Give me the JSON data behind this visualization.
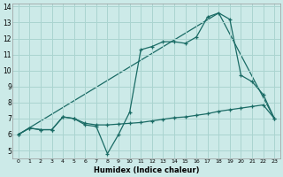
{
  "xlabel": "Humidex (Indice chaleur)",
  "bg_color": "#cceae8",
  "grid_color": "#aad4d0",
  "line_color": "#1a6b65",
  "xlim": [
    -0.5,
    23.5
  ],
  "ylim": [
    4.5,
    14.2
  ],
  "xticks": [
    0,
    1,
    2,
    3,
    4,
    5,
    6,
    7,
    8,
    9,
    10,
    11,
    12,
    13,
    14,
    15,
    16,
    17,
    18,
    19,
    20,
    21,
    22,
    23
  ],
  "yticks": [
    5,
    6,
    7,
    8,
    9,
    10,
    11,
    12,
    13,
    14
  ],
  "line1_x": [
    0,
    1,
    2,
    3,
    4,
    5,
    6,
    7,
    8,
    9,
    10,
    11,
    12,
    13,
    14,
    15,
    16,
    17,
    18,
    19,
    20,
    21,
    22,
    23
  ],
  "line1_y": [
    6.0,
    6.4,
    6.3,
    6.3,
    7.1,
    7.0,
    6.6,
    6.5,
    4.8,
    6.0,
    7.4,
    11.3,
    11.5,
    11.8,
    11.8,
    11.7,
    12.1,
    13.35,
    13.6,
    13.2,
    9.7,
    9.3,
    8.5,
    7.0
  ],
  "line2_x": [
    0,
    1,
    2,
    3,
    4,
    5,
    6,
    7,
    8,
    9,
    10,
    11,
    12,
    13,
    14,
    15,
    16,
    17,
    18,
    19,
    20,
    21,
    22,
    23
  ],
  "line2_y": [
    6.0,
    6.4,
    6.3,
    6.3,
    7.1,
    7.0,
    6.7,
    6.6,
    6.6,
    6.65,
    6.7,
    6.75,
    6.85,
    6.95,
    7.05,
    7.1,
    7.2,
    7.3,
    7.45,
    7.55,
    7.65,
    7.75,
    7.85,
    7.0
  ],
  "line3_x": [
    0,
    18,
    23
  ],
  "line3_y": [
    6.0,
    13.6,
    7.0
  ]
}
